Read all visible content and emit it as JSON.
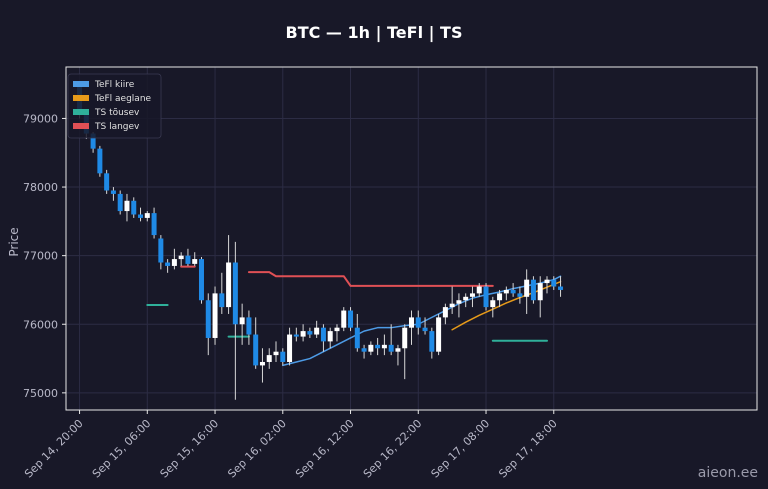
{
  "chart_data": {
    "type": "candlestick",
    "title": "BTC — 1h  |  TeFl  |  TS",
    "ylabel": "Price",
    "xlabel": "",
    "ylim": [
      74750,
      79750
    ],
    "y_ticks": [
      75000,
      76000,
      77000,
      78000,
      79000
    ],
    "x_range_hours": [
      -2,
      100
    ],
    "x_ticks": [
      {
        "h": 0,
        "label": "Sep 14, 20:00"
      },
      {
        "h": 10,
        "label": "Sep 15, 06:00"
      },
      {
        "h": 20,
        "label": "Sep 15, 16:00"
      },
      {
        "h": 30,
        "label": "Sep 16, 02:00"
      },
      {
        "h": 40,
        "label": "Sep 16, 12:00"
      },
      {
        "h": 50,
        "label": "Sep 16, 22:00"
      },
      {
        "h": 60,
        "label": "Sep 17, 08:00"
      },
      {
        "h": 70,
        "label": "Sep 17, 18:00"
      }
    ],
    "grid": true,
    "legend_position": "top-left",
    "colors": {
      "background": "#181828",
      "plot_border": "#e8e8e8",
      "grid": "#2c2c44",
      "up": "#ffffff",
      "down": "#1f8ae6",
      "wick": "#d8d8d8"
    },
    "candles": [
      [
        79500,
        79530,
        79000,
        79050
      ],
      [
        79050,
        79100,
        78700,
        78780
      ],
      [
        78780,
        78800,
        78500,
        78560
      ],
      [
        78560,
        78600,
        78150,
        78200
      ],
      [
        78200,
        78250,
        77900,
        77950
      ],
      [
        77950,
        78000,
        77800,
        77900
      ],
      [
        77900,
        77950,
        77600,
        77650
      ],
      [
        77650,
        77900,
        77500,
        77800
      ],
      [
        77800,
        77850,
        77550,
        77600
      ],
      [
        77600,
        77700,
        77500,
        77550
      ],
      [
        77550,
        77650,
        77500,
        77620
      ],
      [
        77620,
        77700,
        77250,
        77300
      ],
      [
        77250,
        77300,
        76800,
        76900
      ],
      [
        76900,
        76950,
        76750,
        76850
      ],
      [
        76850,
        77100,
        76800,
        76950
      ],
      [
        76950,
        77050,
        76850,
        77000
      ],
      [
        77000,
        77100,
        76850,
        76880
      ],
      [
        76880,
        77050,
        76850,
        76950
      ],
      [
        76950,
        76980,
        76300,
        76350
      ],
      [
        76350,
        76450,
        75550,
        75800
      ],
      [
        75800,
        76550,
        75700,
        76450
      ],
      [
        76450,
        76750,
        76150,
        76250
      ],
      [
        76250,
        77300,
        76150,
        76900
      ],
      [
        76900,
        77200,
        74900,
        76000
      ],
      [
        76000,
        76300,
        75700,
        76100
      ],
      [
        76100,
        76200,
        75700,
        75850
      ],
      [
        75850,
        76100,
        75350,
        75400
      ],
      [
        75400,
        75650,
        75150,
        75450
      ],
      [
        75450,
        75650,
        75350,
        75550
      ],
      [
        75550,
        75750,
        75450,
        75600
      ],
      [
        75600,
        75650,
        75400,
        75450
      ],
      [
        75450,
        75950,
        75400,
        75850
      ],
      [
        75850,
        75950,
        75750,
        75820
      ],
      [
        75820,
        76000,
        75750,
        75900
      ],
      [
        75900,
        75950,
        75800,
        75850
      ],
      [
        75850,
        76050,
        75800,
        75950
      ],
      [
        75950,
        76000,
        75600,
        75750
      ],
      [
        75750,
        75950,
        75650,
        75900
      ],
      [
        75900,
        76000,
        75750,
        75950
      ],
      [
        75950,
        76250,
        75900,
        76200
      ],
      [
        76200,
        76250,
        75900,
        75950
      ],
      [
        75950,
        76150,
        75600,
        75650
      ],
      [
        75650,
        75700,
        75500,
        75600
      ],
      [
        75600,
        75750,
        75550,
        75700
      ],
      [
        75700,
        75800,
        75550,
        75650
      ],
      [
        75650,
        75850,
        75550,
        75700
      ],
      [
        75700,
        76000,
        75550,
        75600
      ],
      [
        75600,
        75700,
        75400,
        75650
      ],
      [
        75650,
        76000,
        75200,
        75950
      ],
      [
        75950,
        76200,
        75700,
        76100
      ],
      [
        76100,
        76200,
        75850,
        75950
      ],
      [
        75950,
        76100,
        75850,
        75900
      ],
      [
        75900,
        75950,
        75500,
        75600
      ],
      [
        75600,
        76150,
        75550,
        76100
      ],
      [
        76100,
        76300,
        76000,
        76250
      ],
      [
        76250,
        76550,
        76150,
        76300
      ],
      [
        76300,
        76450,
        76100,
        76350
      ],
      [
        76350,
        76450,
        76250,
        76400
      ],
      [
        76400,
        76550,
        76250,
        76450
      ],
      [
        76450,
        76600,
        76400,
        76550
      ],
      [
        76550,
        76600,
        76200,
        76250
      ],
      [
        76250,
        76400,
        76100,
        76350
      ],
      [
        76350,
        76500,
        76250,
        76450
      ],
      [
        76450,
        76550,
        76350,
        76500
      ],
      [
        76500,
        76600,
        76400,
        76450
      ],
      [
        76450,
        76550,
        76300,
        76400
      ],
      [
        76400,
        76800,
        76150,
        76650
      ],
      [
        76650,
        76700,
        76300,
        76350
      ],
      [
        76350,
        76700,
        76100,
        76600
      ],
      [
        76600,
        76700,
        76450,
        76650
      ],
      [
        76650,
        76700,
        76500,
        76550
      ],
      [
        76550,
        76700,
        76400,
        76500
      ]
    ],
    "series": [
      {
        "name": "TeFl kiire",
        "color": "#4d9be6",
        "width": 1.5,
        "points": [
          [
            30,
            75400
          ],
          [
            32,
            75450
          ],
          [
            34,
            75500
          ],
          [
            36,
            75600
          ],
          [
            38,
            75700
          ],
          [
            40,
            75800
          ],
          [
            42,
            75900
          ],
          [
            44,
            75950
          ],
          [
            46,
            75950
          ],
          [
            48,
            75980
          ],
          [
            50,
            76000
          ],
          [
            52,
            76100
          ],
          [
            54,
            76200
          ],
          [
            56,
            76300
          ],
          [
            58,
            76380
          ],
          [
            60,
            76430
          ],
          [
            62,
            76470
          ],
          [
            64,
            76520
          ],
          [
            66,
            76560
          ],
          [
            68,
            76600
          ],
          [
            70,
            76650
          ],
          [
            71,
            76700
          ]
        ]
      },
      {
        "name": "TeFl aeglane",
        "color": "#e69a1a",
        "width": 1.5,
        "points": [
          [
            55,
            75920
          ],
          [
            57,
            76030
          ],
          [
            59,
            76130
          ],
          [
            61,
            76220
          ],
          [
            63,
            76310
          ],
          [
            65,
            76390
          ],
          [
            67,
            76460
          ],
          [
            69,
            76540
          ],
          [
            71,
            76620
          ]
        ]
      },
      {
        "name": "TS tõusev",
        "color": "#2fb09a",
        "width": 2,
        "segments": [
          [
            [
              10,
              76280
            ],
            [
              13,
              76280
            ]
          ],
          [
            [
              22,
              75820
            ],
            [
              25,
              75820
            ]
          ],
          [
            [
              61,
              75760
            ],
            [
              69,
              75760
            ]
          ]
        ]
      },
      {
        "name": "TS langev",
        "color": "#e05055",
        "width": 2,
        "segments": [
          [
            [
              15,
              76840
            ],
            [
              17,
              76840
            ]
          ]
        ],
        "points": [
          [
            25,
            76760
          ],
          [
            28,
            76760
          ],
          [
            29,
            76700
          ],
          [
            39,
            76700
          ],
          [
            40,
            76560
          ],
          [
            61,
            76560
          ]
        ]
      }
    ]
  },
  "watermark": "aieon.ee"
}
